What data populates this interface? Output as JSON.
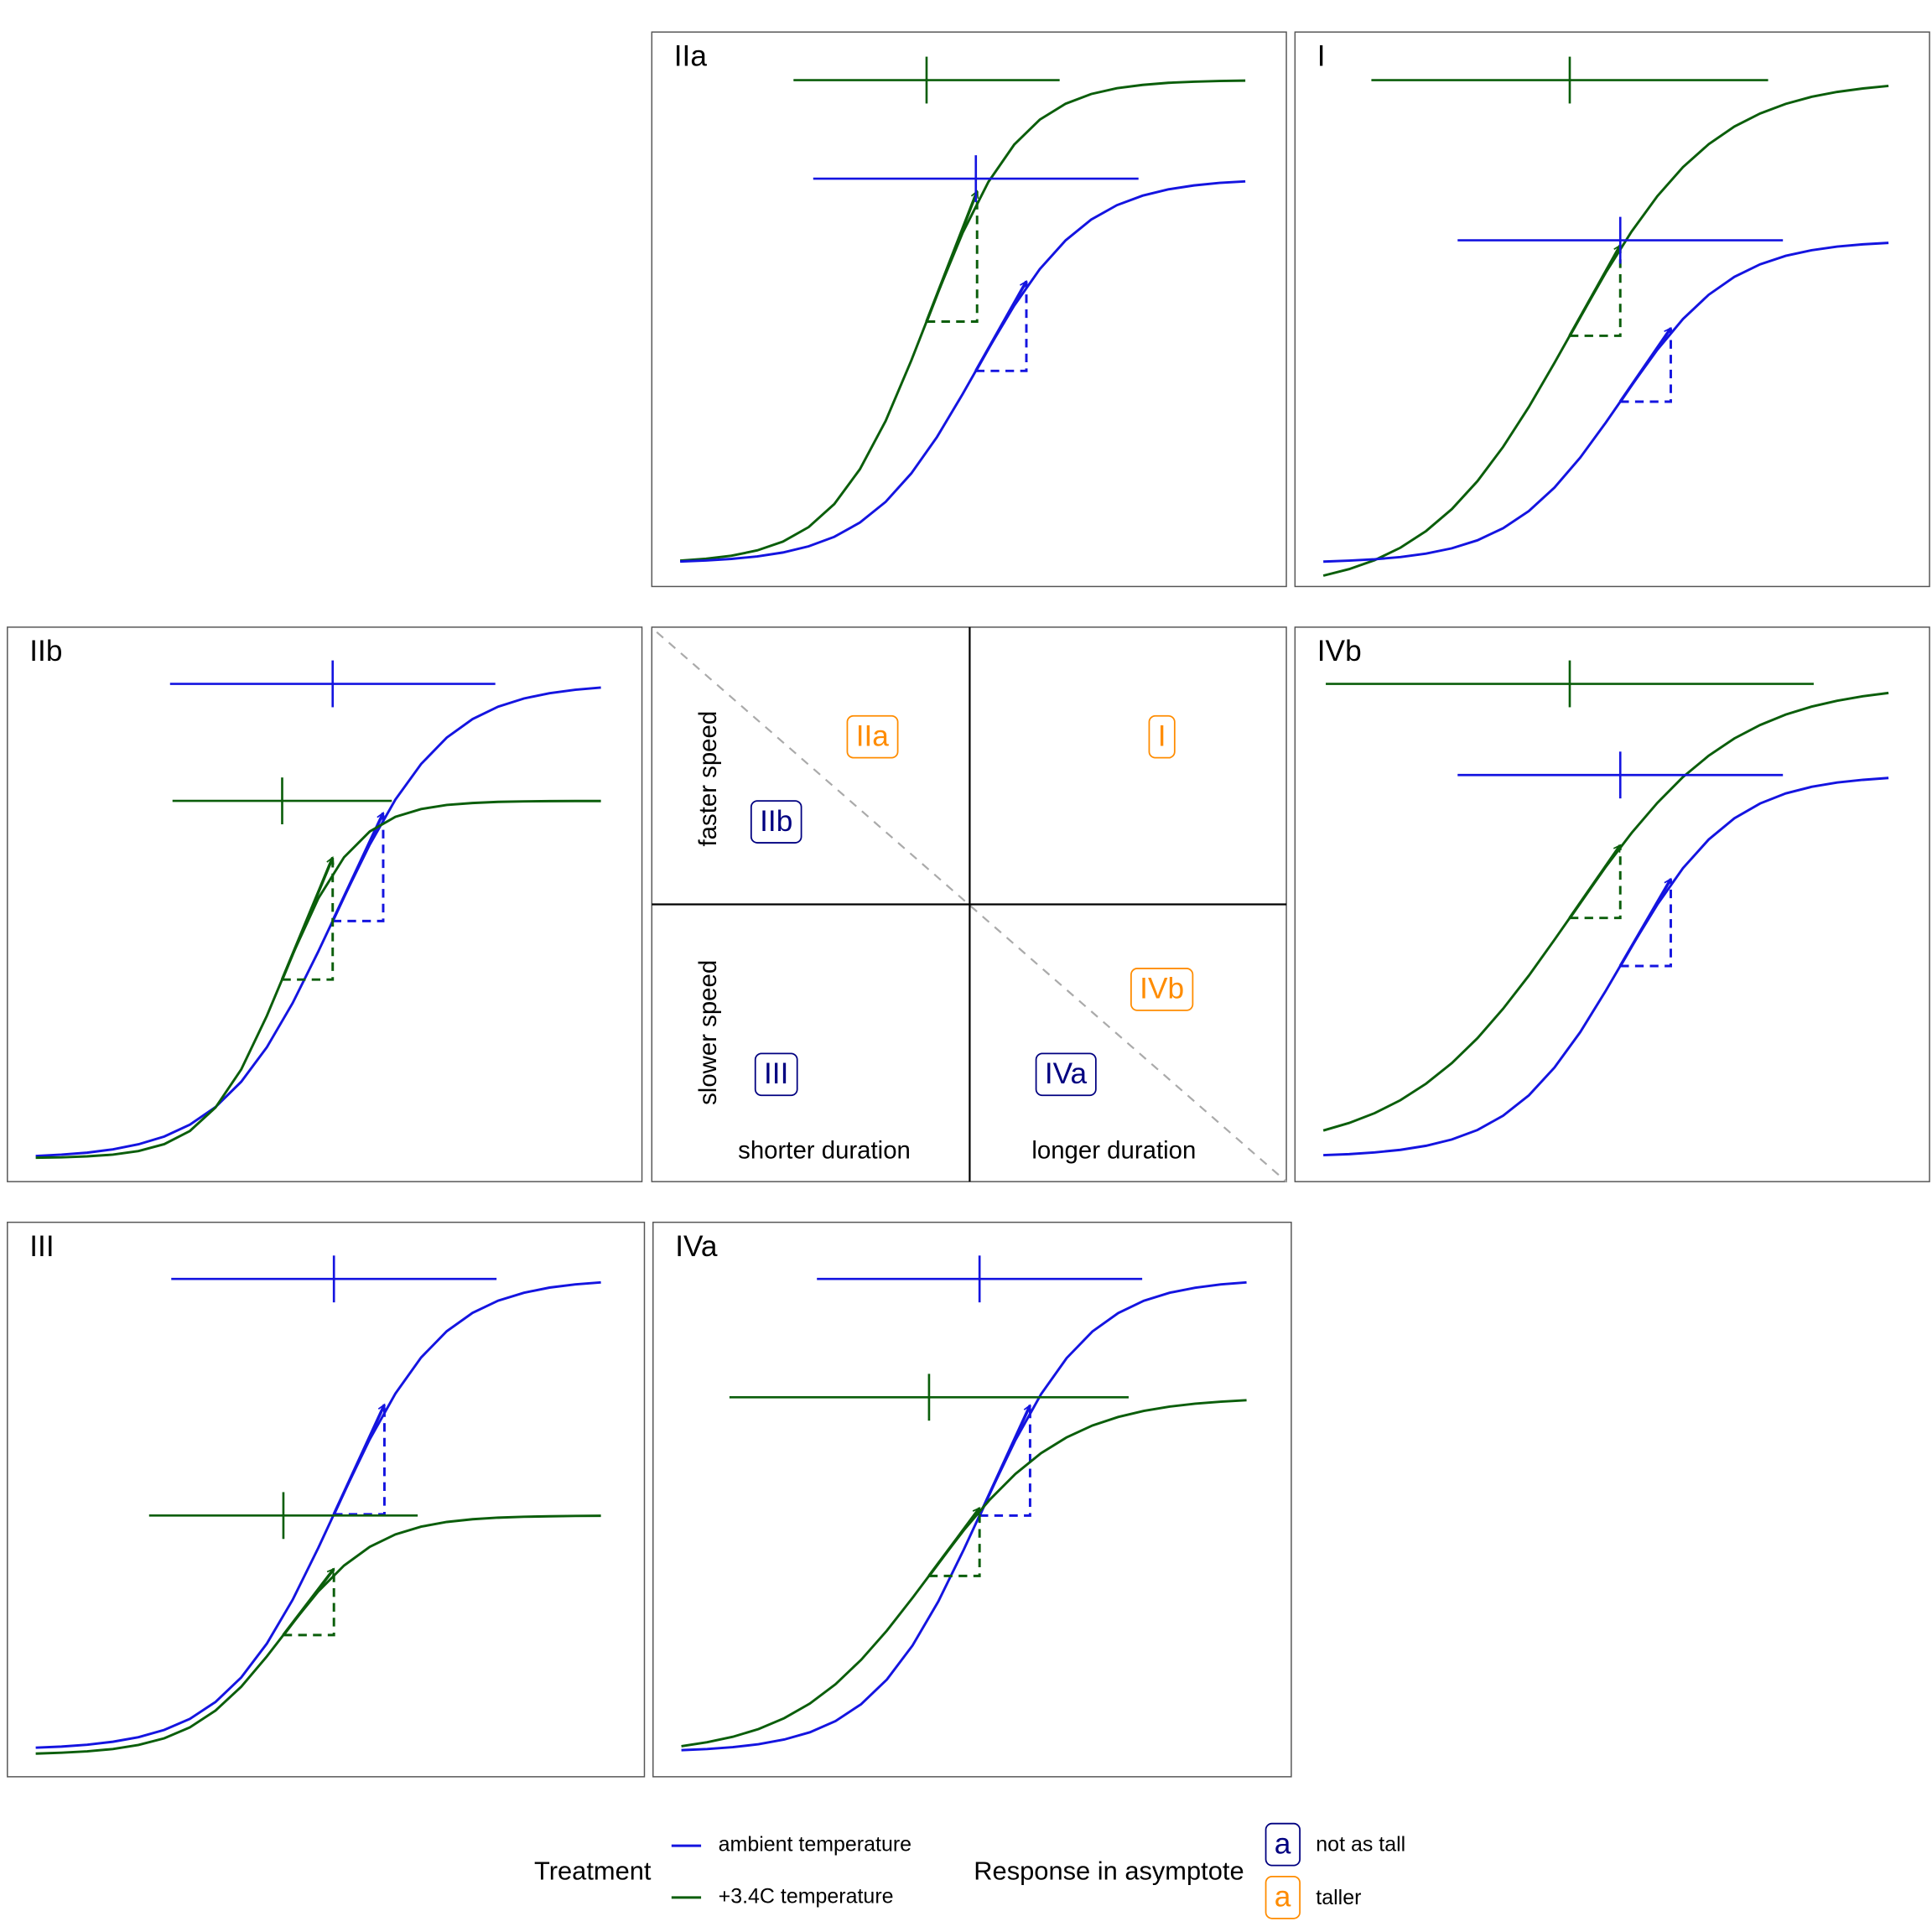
{
  "panels": [
    {
      "label": "IIa"
    },
    {
      "label": "I"
    },
    {
      "label": "IIb"
    },
    {
      "label": "IVb"
    },
    {
      "label": "III"
    },
    {
      "label": "IVa"
    }
  ],
  "center": {
    "boxes": [
      {
        "label": "IIa"
      },
      {
        "label": "I"
      },
      {
        "label": "IIb"
      },
      {
        "label": "IVb"
      },
      {
        "label": "IVa"
      },
      {
        "label": "III"
      }
    ],
    "y_labels": [
      "faster speed",
      "slower speed"
    ],
    "x_labels": [
      "shorter duration",
      "longer duration"
    ]
  },
  "legend": {
    "treatment": {
      "title": "Treatment",
      "items": [
        "ambient temperature",
        "+3.4C temperature"
      ]
    },
    "response": {
      "title": "Response in asymptote",
      "symbol": "a",
      "items": [
        "not as tall",
        "taller"
      ]
    }
  }
}
